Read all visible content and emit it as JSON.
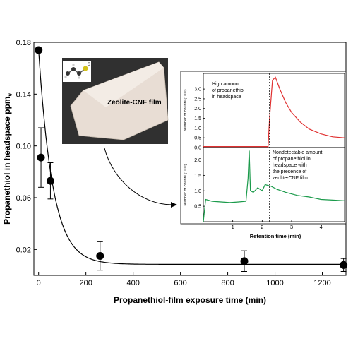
{
  "chart_data": [
    {
      "type": "scatter",
      "xlabel": "Propanethiol-film exposure time (min)",
      "ylabel_main": "Propanethiol in headspace ppm",
      "ylabel_sub": "v",
      "xlim": [
        -20,
        1300
      ],
      "ylim": [
        0,
        0.18
      ],
      "x_ticks": [
        0,
        200,
        400,
        600,
        800,
        1000,
        1200
      ],
      "y_ticks": [
        0.02,
        0.06,
        0.1,
        0.14,
        0.18
      ],
      "y_tick_labels": [
        "0.02",
        "0.06",
        "0.10",
        "0.14",
        "0.18"
      ],
      "grid": false,
      "points": [
        {
          "x": 0,
          "y": 0.174,
          "err": 0
        },
        {
          "x": 10,
          "y": 0.091,
          "err": 0.023
        },
        {
          "x": 50,
          "y": 0.073,
          "err": 0.014
        },
        {
          "x": 260,
          "y": 0.015,
          "err": 0.011
        },
        {
          "x": 870,
          "y": 0.011,
          "err": 0.008
        },
        {
          "x": 1290,
          "y": 0.008,
          "err": 0.005
        }
      ],
      "fit_curve": {
        "form": "exponential decay",
        "asymptote": 0.0085,
        "amplitude": 0.1655,
        "tau": 60
      }
    },
    {
      "type": "line",
      "color": "#e03030",
      "xlim": [
        0,
        4.8
      ],
      "ylim": [
        0,
        3.8
      ],
      "y_ticks": [
        0,
        0.5,
        1.0,
        1.5,
        2.0,
        2.5,
        3.0
      ],
      "y_tick_labels": [
        "0.0",
        "0.5",
        "1.0",
        "1.5",
        "2.0",
        "2.5",
        "3.0"
      ],
      "ylabel": "Number of counts (*10⁵)",
      "annotation": [
        "High amount",
        "of propanethiol",
        "in headspace"
      ],
      "x": [
        0.0,
        2.2,
        2.25,
        2.35,
        2.45,
        2.6,
        2.8,
        3.0,
        3.3,
        3.6,
        4.0,
        4.4,
        4.8
      ],
      "y": [
        0.05,
        0.05,
        1.5,
        3.45,
        3.6,
        3.0,
        2.3,
        1.8,
        1.3,
        0.95,
        0.7,
        0.55,
        0.5
      ]
    },
    {
      "type": "line",
      "color": "#1a9a4a",
      "xlim": [
        0,
        4.8
      ],
      "ylim": [
        0,
        2.4
      ],
      "x_ticks": [
        1,
        2,
        3,
        4
      ],
      "y_ticks": [
        0.5,
        1.0,
        1.5,
        2.0
      ],
      "y_tick_labels": [
        "0.5",
        "1.0",
        "1.5",
        "2.0"
      ],
      "ylabel": "Number of counts (*10⁵)",
      "xlabel": "Retention time (min)",
      "annotation": [
        "Nondetectable amount",
        "of propanethiol in",
        "headspace with",
        "the presence of",
        "zeolite-CNF film"
      ],
      "x": [
        0.0,
        0.08,
        0.3,
        0.6,
        0.9,
        1.2,
        1.45,
        1.52,
        1.56,
        1.6,
        1.7,
        1.85,
        2.0,
        2.1,
        2.3,
        2.5,
        2.8,
        3.2,
        3.6,
        4.0,
        4.4,
        4.8
      ],
      "y": [
        0.0,
        0.72,
        0.66,
        0.64,
        0.62,
        0.64,
        0.66,
        1.4,
        2.3,
        1.0,
        0.95,
        1.1,
        1.0,
        1.2,
        1.15,
        1.05,
        0.95,
        0.85,
        0.8,
        0.72,
        0.7,
        0.68
      ]
    }
  ],
  "photo_inset": {
    "label": "Zeolite-CNF film",
    "molecule_atom_label": "S"
  },
  "divider_dashed_x": 2.25,
  "colors": {
    "axis": "#000000",
    "red_trace": "#e03030",
    "green_trace": "#1a9a4a",
    "photo_bg": "#3a3a3a",
    "film": "#e8ddd4"
  }
}
